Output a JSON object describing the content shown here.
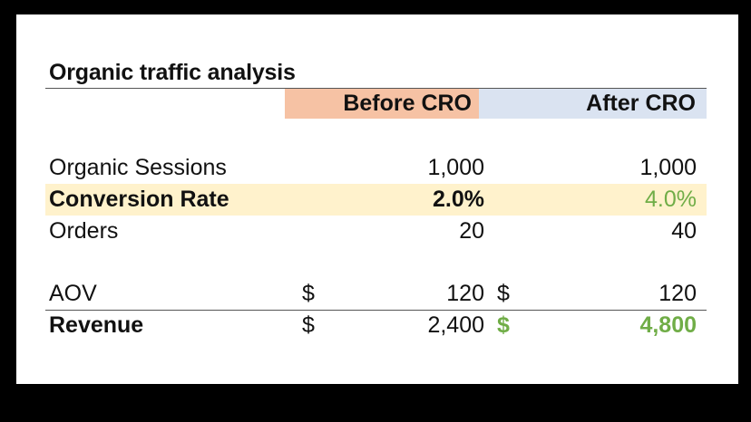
{
  "table": {
    "title": "Organic traffic analysis",
    "headers": {
      "before": "Before CRO",
      "after": "After CRO"
    },
    "rows": [
      {
        "label": "Organic Sessions",
        "before": "1,000",
        "after": "1,000"
      },
      {
        "label": "Conversion Rate",
        "before": "2.0%",
        "after": "4.0%"
      },
      {
        "label": "Orders",
        "before": "20",
        "after": "40"
      },
      {
        "label": "AOV",
        "currency_before": "$",
        "before": "120",
        "currency_after": "$",
        "after": "120"
      },
      {
        "label": "Revenue",
        "currency_before": "$",
        "before": "2,400",
        "currency_after": "$",
        "after": "4,800"
      }
    ],
    "colors": {
      "before_header": "#f6c2a4",
      "after_header": "#dae3f1",
      "highlight_row": "#fff2cc",
      "positive": "#70ad47"
    }
  }
}
